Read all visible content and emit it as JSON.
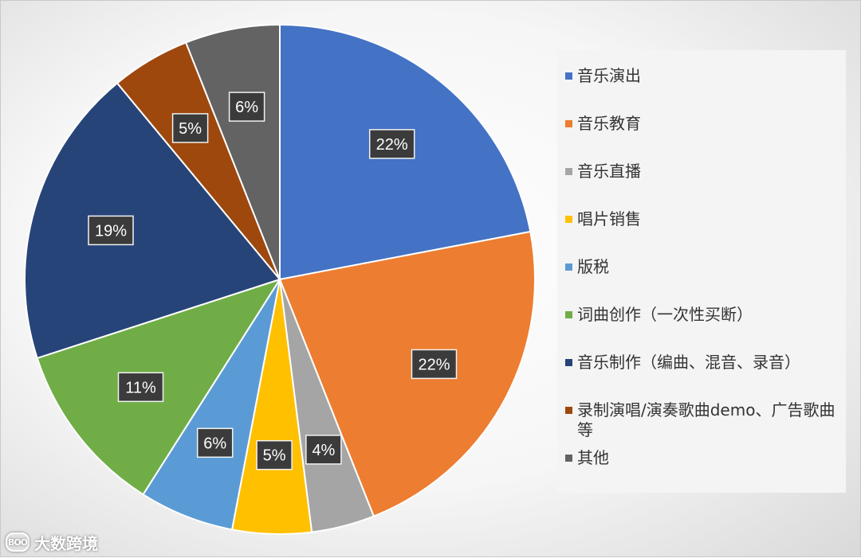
{
  "chart_data": {
    "type": "pie",
    "start_angle_deg": 0,
    "direction": "clockwise",
    "slices": [
      {
        "label": "音乐演出",
        "value": 22,
        "display": "22%",
        "color": "#4472C4"
      },
      {
        "label": "音乐教育",
        "value": 22,
        "display": "22%",
        "color": "#ED7D31"
      },
      {
        "label": "音乐直播",
        "value": 4,
        "display": "4%",
        "color": "#A5A5A5"
      },
      {
        "label": "唱片销售",
        "value": 5,
        "display": "5%",
        "color": "#FFC000"
      },
      {
        "label": "版税",
        "value": 6,
        "display": "6%",
        "color": "#5B9BD5"
      },
      {
        "label": "词曲创作（一次性买断）",
        "value": 11,
        "display": "11%",
        "color": "#70AD47"
      },
      {
        "label": "音乐制作（编曲、混音、录音）",
        "value": 19,
        "display": "19%",
        "color": "#264478"
      },
      {
        "label": "录制演唱/演奏歌曲demo、广告歌曲等",
        "value": 5,
        "display": "5%",
        "color": "#9E480E"
      },
      {
        "label": "其他",
        "value": 6,
        "display": "6%",
        "color": "#636363"
      }
    ],
    "legend_position": "right"
  },
  "watermark": {
    "icon_text": "BOO",
    "text": "大数跨境"
  }
}
